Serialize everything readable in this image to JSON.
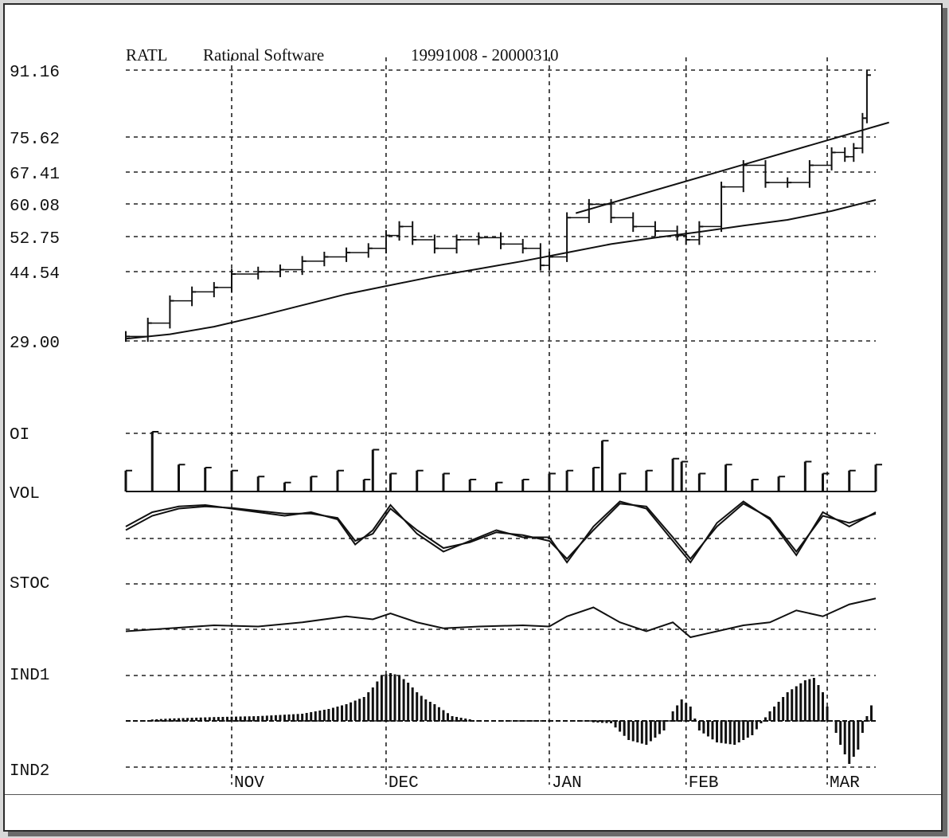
{
  "header": {
    "ticker": "RATL",
    "company": "Rational Software",
    "date_range": "19991008 - 20000310"
  },
  "panel_labels": [
    "OI",
    "VOL",
    "STOC",
    "IND1",
    "IND2"
  ],
  "chart_data": {
    "type": "line",
    "subtype": "stock bar chart with indicator panels",
    "y_tick_labels": [
      "91.16",
      "75.62",
      "67.41",
      "60.08",
      "52.75",
      "44.54",
      "29.00"
    ],
    "y_ticks": [
      91.16,
      75.62,
      67.41,
      60.08,
      52.75,
      44.54,
      29.0
    ],
    "x_tick_labels": [
      "NOV",
      "DEC",
      "JAN",
      "FEB",
      "MAR"
    ],
    "x_tick_days": [
      24,
      59,
      96,
      127,
      159
    ],
    "x_range_days": [
      0,
      170
    ],
    "grid": true,
    "price": {
      "x_days": [
        0,
        5,
        10,
        15,
        20,
        24,
        30,
        35,
        40,
        45,
        50,
        55,
        59,
        62,
        65,
        70,
        75,
        80,
        85,
        90,
        94,
        96,
        100,
        105,
        110,
        115,
        120,
        125,
        127,
        130,
        135,
        140,
        145,
        150,
        155,
        160,
        163,
        165,
        167,
        168
      ],
      "close": [
        30,
        33,
        38,
        40,
        41,
        44,
        44.5,
        45,
        47,
        48,
        49,
        50,
        53,
        55,
        52,
        50,
        52,
        52.5,
        51,
        50,
        46,
        48,
        57,
        60,
        57,
        55,
        54,
        53,
        52,
        55,
        64,
        69,
        65,
        65,
        69,
        72,
        71,
        73,
        80,
        90
      ]
    },
    "moving_average": {
      "x_days": [
        0,
        10,
        20,
        30,
        40,
        50,
        60,
        70,
        80,
        90,
        100,
        110,
        120,
        130,
        140,
        150,
        160,
        170
      ],
      "values": [
        29.5,
        30.5,
        32.2,
        34.5,
        37,
        39.5,
        41.5,
        43.5,
        45.2,
        47,
        49,
        51,
        52.5,
        53.8,
        55.2,
        56.5,
        58.5,
        61
      ]
    },
    "trend_channel": {
      "x_days": [
        102,
        173
      ],
      "values": [
        58,
        79
      ]
    },
    "volume": {
      "x_days": [
        0,
        6,
        12,
        18,
        24,
        30,
        36,
        42,
        48,
        54,
        56,
        60,
        66,
        72,
        78,
        84,
        90,
        96,
        100,
        106,
        108,
        112,
        118,
        124,
        126,
        130,
        136,
        142,
        148,
        154,
        158,
        164,
        170
      ],
      "values": [
        0.35,
        1.0,
        0.45,
        0.4,
        0.35,
        0.25,
        0.15,
        0.25,
        0.35,
        0.2,
        0.7,
        0.3,
        0.35,
        0.3,
        0.2,
        0.15,
        0.2,
        0.3,
        0.35,
        0.4,
        0.85,
        0.3,
        0.35,
        0.55,
        0.5,
        0.3,
        0.45,
        0.2,
        0.25,
        0.5,
        0.3,
        0.35,
        0.45
      ]
    },
    "stochastic": {
      "x_days": [
        0,
        6,
        12,
        18,
        24,
        30,
        36,
        42,
        48,
        52,
        56,
        60,
        66,
        72,
        78,
        84,
        90,
        96,
        100,
        106,
        112,
        118,
        124,
        128,
        134,
        140,
        146,
        152,
        158,
        164,
        170
      ],
      "k": [
        60,
        80,
        88,
        90,
        85,
        80,
        75,
        80,
        70,
        35,
        55,
        90,
        50,
        25,
        40,
        55,
        45,
        45,
        10,
        60,
        95,
        85,
        40,
        10,
        65,
        95,
        70,
        20,
        80,
        60,
        80
      ],
      "d": [
        55,
        75,
        85,
        88,
        86,
        82,
        78,
        78,
        72,
        40,
        50,
        85,
        55,
        30,
        38,
        52,
        48,
        40,
        15,
        55,
        92,
        88,
        45,
        15,
        60,
        92,
        72,
        25,
        75,
        65,
        78
      ]
    },
    "ind1": {
      "x_days": [
        0,
        10,
        20,
        30,
        40,
        50,
        56,
        60,
        66,
        72,
        80,
        90,
        96,
        100,
        106,
        112,
        118,
        124,
        128,
        134,
        140,
        146,
        152,
        158,
        164,
        170
      ],
      "values": [
        30,
        35,
        40,
        38,
        45,
        55,
        50,
        60,
        45,
        35,
        38,
        40,
        38,
        55,
        70,
        45,
        30,
        45,
        20,
        30,
        40,
        45,
        65,
        55,
        75,
        85
      ]
    },
    "ind2": {
      "x_days": [
        0,
        10,
        20,
        30,
        40,
        46,
        50,
        54,
        56,
        58,
        60,
        62,
        64,
        66,
        68,
        70,
        74,
        80,
        90,
        100,
        110,
        114,
        118,
        122,
        124,
        126,
        128,
        130,
        134,
        138,
        142,
        146,
        150,
        154,
        156,
        158,
        160,
        162,
        164,
        166,
        168,
        170
      ],
      "values": [
        0,
        0.05,
        0.08,
        0.1,
        0.15,
        0.25,
        0.35,
        0.5,
        0.7,
        0.95,
        1.0,
        0.95,
        0.8,
        0.6,
        0.45,
        0.35,
        0.1,
        0,
        0,
        0,
        -0.05,
        -0.4,
        -0.5,
        -0.2,
        0.2,
        0.45,
        0.3,
        -0.2,
        -0.45,
        -0.5,
        -0.3,
        0.2,
        0.6,
        0.85,
        0.9,
        0.6,
        0.0,
        -0.5,
        -0.9,
        -0.6,
        0.1,
        0.55
      ]
    }
  }
}
